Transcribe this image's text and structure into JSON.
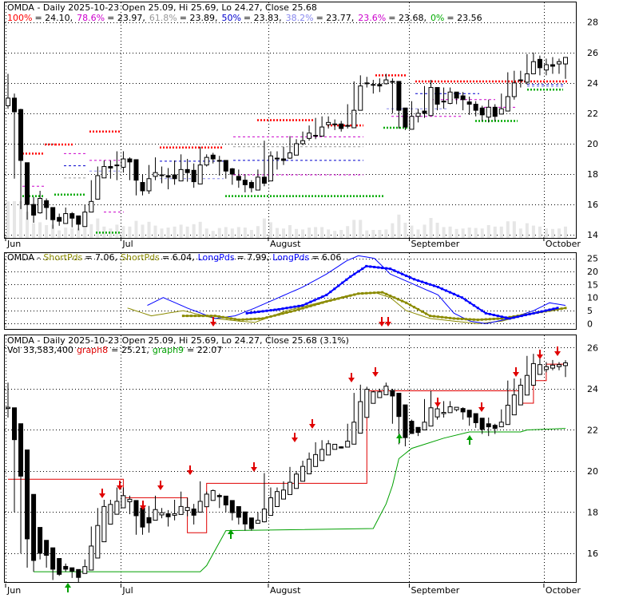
{
  "colors": {
    "red": "#e00000",
    "green": "#00a000",
    "blue": "#0000ff",
    "olive": "#8b8b00",
    "fib100": "#ff0000",
    "fib786": "#cc00cc",
    "fib618": "#999999",
    "fib50": "#0000cc",
    "fib382": "#8888ee",
    "fib236": "#cc00cc",
    "fib0": "#00aa00"
  },
  "chart_data": [
    {
      "type": "candlestick",
      "panel": "price",
      "title_parts": [
        "OMDA - Daily 2025-10-23 Open 25.09, Hi 25.69, Lo 24.27, Close 25.68"
      ],
      "fib_legend": [
        {
          "label": "100%",
          "value": "= 24.10,",
          "color": "fib100"
        },
        {
          "label": "78.6%",
          "value": "= 23.97,",
          "color": "fib786"
        },
        {
          "label": "61.8%",
          "value": "= 23.89,",
          "color": "fib618"
        },
        {
          "label": "50%",
          "value": "= 23.83,",
          "color": "fib50"
        },
        {
          "label": "38.2%",
          "value": "= 23.77,",
          "color": "fib382"
        },
        {
          "label": "23.6%",
          "value": "= 23.68,",
          "color": "fib236"
        },
        {
          "label": "0%",
          "value": "= 23.56",
          "color": "fib0"
        }
      ],
      "x_labels": [
        "Jun",
        "Jul",
        "August",
        "September",
        "October"
      ],
      "y_ticks": [
        14,
        16,
        18,
        20,
        22,
        24,
        26,
        28
      ],
      "ylim": [
        13.8,
        29.3
      ],
      "close": [
        23.0,
        22.1,
        18.9,
        16.0,
        15.3,
        16.4,
        15.8,
        15.0,
        14.9,
        15.4,
        15.1,
        14.7,
        15.5,
        16.2,
        17.9,
        18.5,
        18.4,
        18.6,
        19.0,
        18.8,
        17.6,
        16.9,
        17.7,
        18.1,
        17.9,
        17.8,
        17.7,
        18.3,
        18.1,
        17.5,
        18.6,
        19.1,
        19.0,
        18.9,
        18.2,
        18.0,
        17.6,
        17.3,
        17.1,
        17.8,
        17.4,
        19.2,
        19.0,
        18.9,
        19.4,
        20.0,
        20.2,
        20.7,
        20.5,
        21.1,
        21.4,
        21.3,
        21.0,
        21.2,
        22.2,
        23.8,
        24.0,
        23.9,
        23.8,
        24.2,
        24.1,
        22.2,
        21.1,
        21.8,
        22.0,
        22.0,
        23.7,
        22.6,
        22.8,
        23.4,
        23.0,
        22.9,
        22.6,
        22.2,
        21.9,
        22.4,
        21.8,
        22.3,
        23.1,
        24.0,
        24.2,
        24.6,
        25.4,
        25.0,
        25.2,
        25.1,
        25.4,
        25.68
      ],
      "hi": [
        24.6,
        23.3,
        22.3,
        16.9,
        16.5,
        16.9,
        16.4,
        15.7,
        15.4,
        15.8,
        15.5,
        15.2,
        16.0,
        17.6,
        18.5,
        18.9,
        18.9,
        19.5,
        19.5,
        19.1,
        18.3,
        18.0,
        18.6,
        19.1,
        18.5,
        18.4,
        18.9,
        19.3,
        19.0,
        18.7,
        19.8,
        19.3,
        19.4,
        19.2,
        18.6,
        18.4,
        18.3,
        18.0,
        17.6,
        18.3,
        20.2,
        19.5,
        19.5,
        19.8,
        20.5,
        20.3,
        20.8,
        21.2,
        21.7,
        21.8,
        21.8,
        21.6,
        21.5,
        22.6,
        24.1,
        24.5,
        24.4,
        24.2,
        24.3,
        24.6,
        24.3,
        23.3,
        22.3,
        22.8,
        22.3,
        23.8,
        24.2,
        23.6,
        23.7,
        23.7,
        23.4,
        23.4,
        23.1,
        22.8,
        22.5,
        22.9,
        22.6,
        23.3,
        24.7,
        24.8,
        24.8,
        25.9,
        26.0,
        25.8,
        25.6,
        25.7,
        25.6,
        25.69
      ],
      "lo": [
        22.3,
        17.7,
        15.7,
        15.0,
        14.8,
        15.4,
        15.0,
        14.4,
        14.6,
        14.8,
        14.5,
        14.3,
        15.2,
        16.1,
        16.8,
        17.8,
        17.7,
        17.6,
        18.1,
        17.6,
        16.6,
        16.6,
        16.7,
        17.6,
        17.4,
        17.0,
        17.3,
        17.8,
        17.5,
        17.1,
        18.2,
        18.5,
        18.7,
        17.9,
        17.7,
        17.3,
        17.1,
        16.8,
        16.8,
        17.2,
        17.2,
        18.7,
        18.3,
        18.6,
        19.0,
        19.7,
        19.9,
        20.2,
        20.3,
        20.8,
        21.0,
        20.9,
        20.8,
        21.0,
        22.0,
        23.0,
        23.7,
        23.3,
        23.4,
        23.9,
        22.0,
        21.0,
        20.9,
        21.6,
        21.4,
        21.7,
        22.4,
        22.2,
        22.3,
        22.6,
        22.6,
        22.2,
        21.9,
        21.8,
        21.5,
        21.4,
        21.5,
        22.1,
        22.7,
        22.9,
        23.7,
        23.9,
        24.9,
        24.5,
        24.5,
        24.6,
        24.6,
        24.27
      ]
    },
    {
      "type": "line",
      "panel": "oscillator",
      "title": "OMDA -",
      "legend": [
        {
          "name": "ShortPds",
          "value": "= 7.06,",
          "color": "olive"
        },
        {
          "name": "ShortPds",
          "value": "= 6.04,",
          "color": "olive"
        },
        {
          "name": "LongPds",
          "value": "= 7.99,",
          "color": "blue"
        },
        {
          "name": "LongPds",
          "value": "= 6.06",
          "color": "blue"
        }
      ],
      "y_ticks": [
        0,
        5,
        10,
        15,
        20,
        25
      ],
      "ylim": [
        -2,
        27
      ]
    },
    {
      "type": "candlestick",
      "panel": "heikin",
      "title": "OMDA - Daily 2025-10-23 Open 25.09, Hi 25.69, Lo 24.27, Close 25.68 (3.1%)",
      "vol_legend": [
        {
          "text": "Vol 33,583,400",
          "color": "black"
        },
        {
          "text": "graph8",
          "color": "red"
        },
        {
          "text": "= 25.21,",
          "color": "black"
        },
        {
          "text": "graph9",
          "color": "green"
        },
        {
          "text": "= 22.07",
          "color": "black"
        }
      ],
      "x_labels": [
        "Jun",
        "Jul",
        "August",
        "September",
        "October"
      ],
      "y_ticks": [
        16,
        18,
        20,
        22,
        24,
        26
      ],
      "ylim": [
        14.6,
        26.6
      ]
    }
  ]
}
